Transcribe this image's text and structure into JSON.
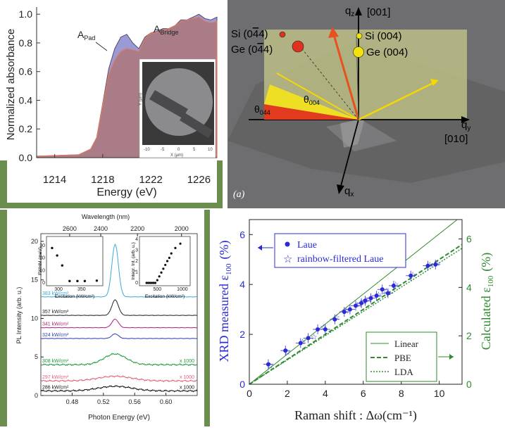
{
  "colors": {
    "green_frame": "#6b8e4e",
    "abs_fill": "#a97c88",
    "abs_pad_fill": "#8f8fcf",
    "abs_bridge_line": "#e07a5f",
    "blue_series": "#2b2bd6",
    "green_series": "#2e8b2e",
    "sem_bg": "#707072",
    "yellow_plane": "#c8c98a"
  },
  "panel_a": {
    "ylabel": "Normalized absorbance",
    "xlabel": "Energy (eV)",
    "label_pad": "A",
    "label_pad_sub": "Pad",
    "label_bridge": "A",
    "label_bridge_sub": "Bridge",
    "inset_ylabel": "Y (µm)",
    "inset_xlabel": "X (µm)",
    "inset_xticks": [
      "-10",
      "-5",
      "0",
      "5",
      "10"
    ],
    "inset_yticks": [
      "10",
      "5",
      "0",
      "-5",
      "-10"
    ]
  },
  "panel_b": {
    "qz": "q",
    "qz_sub": "z",
    "qz_dir": "[001]",
    "qy": "q",
    "qy_sub": "y",
    "qy_dir": "[010]",
    "qx": "q",
    "qx_sub": "x",
    "si_neg": "Si (0",
    "si_neg_bar": "4",
    "si_neg_mid": "",
    "si_neg_tail": "4)",
    "ge_neg": "Ge (0",
    "ge_neg_tail": "4)",
    "si_pos": "Si (004)",
    "ge_pos": "Ge (004)",
    "theta_004": "θ",
    "theta_004_sub": "004",
    "theta_044": "θ",
    "theta_044_sub": "044",
    "theta_044_bar": "0",
    "panel_label": "(a)"
  },
  "panel_c": {
    "top_label": "Wavelength (nm)",
    "top_ticks": [
      "2600",
      "2400",
      "2200",
      "2000"
    ],
    "ylabel": "PL Intensity (arb. u.)",
    "xlabel": "Photon Energy (eV)",
    "yticks": [
      "0",
      "5",
      "10",
      "15",
      "20"
    ],
    "xticks": [
      "0.48",
      "0.52",
      "0.56",
      "0.60"
    ],
    "traces": [
      {
        "label": "383 kW/cm²",
        "color": "#3fa9d9",
        "mult": ""
      },
      {
        "label": "357 kW/cm²",
        "color": "#222222",
        "mult": ""
      },
      {
        "label": "341 kW/cm²",
        "color": "#b0207a",
        "mult": ""
      },
      {
        "label": "324 kW/cm²",
        "color": "#2b3fb0",
        "mult": ""
      },
      {
        "label": "308 kW/cm²",
        "color": "#1f9a3a",
        "mult": "x 1000"
      },
      {
        "label": "297 kW/cm²",
        "color": "#e0607a",
        "mult": "x 1000"
      },
      {
        "label": "286 kW/cm²",
        "color": "#111111",
        "mult": "x 1000"
      }
    ],
    "inset1": {
      "ylabel": "FWHM (meV)",
      "xlabel": "Excitation (kW/cm²)",
      "xticks": [
        "300",
        "350"
      ],
      "yticks": [
        "0",
        "10",
        "20",
        "30"
      ]
    },
    "inset2": {
      "ylabel": "Integr. Int. (arb. u.)",
      "xlabel": "Excitation (kW/cm²)",
      "xticks": [
        "500",
        "1000"
      ],
      "yticks": [
        "0",
        "1",
        "2",
        "3",
        "4"
      ]
    }
  },
  "chart_data": [
    {
      "type": "area",
      "title": "",
      "xlabel": "Energy (eV)",
      "ylabel": "Normalized absorbance",
      "xlim": [
        1212.5,
        1227.5
      ],
      "ylim": [
        0,
        1.05
      ],
      "xticks": [
        1214,
        1218,
        1222,
        1226
      ],
      "yticks": [
        0.0,
        0.2,
        0.4,
        0.6,
        0.8,
        1.0
      ],
      "series": [
        {
          "name": "A_Pad",
          "x": [
            1212.5,
            1216,
            1217,
            1217.5,
            1218,
            1218.5,
            1219,
            1219.5,
            1220,
            1220.5,
            1221,
            1221.5,
            1222,
            1222.5,
            1223,
            1223.5,
            1224,
            1224.5,
            1225,
            1225.5,
            1226,
            1226.5,
            1227,
            1227.5
          ],
          "values": [
            0.01,
            0.02,
            0.06,
            0.14,
            0.38,
            0.62,
            0.76,
            0.84,
            0.86,
            0.8,
            0.76,
            0.84,
            0.87,
            0.88,
            0.9,
            0.9,
            0.92,
            0.96,
            0.96,
            0.98,
            1.0,
            0.97,
            0.96,
            0.98
          ]
        },
        {
          "name": "A_Bridge",
          "x": [
            1212.5,
            1216,
            1217,
            1217.5,
            1218,
            1218.5,
            1219,
            1219.5,
            1220,
            1220.5,
            1221,
            1221.5,
            1222,
            1222.5,
            1223,
            1223.5,
            1224,
            1224.5,
            1225,
            1225.5,
            1226,
            1226.5,
            1227,
            1227.5
          ],
          "values": [
            0.01,
            0.02,
            0.06,
            0.14,
            0.37,
            0.58,
            0.68,
            0.74,
            0.76,
            0.75,
            0.74,
            0.83,
            0.87,
            0.87,
            0.89,
            0.9,
            0.92,
            0.95,
            0.96,
            0.97,
            0.98,
            0.95,
            0.94,
            0.95
          ]
        }
      ]
    },
    {
      "type": "line",
      "title": "",
      "xlabel": "Photon Energy (eV)",
      "ylabel": "PL Intensity (arb. u.)",
      "top_xlabel": "Wavelength (nm)",
      "xlim": [
        0.44,
        0.64
      ],
      "ylim": [
        0,
        21
      ],
      "xticks": [
        0.48,
        0.52,
        0.56,
        0.6
      ],
      "yticks": [
        0,
        5,
        10,
        15,
        20
      ],
      "peak_energy": 0.535,
      "series": [
        {
          "name": "383 kW/cm²",
          "offset": 12.8,
          "peak": 6.8,
          "width": 0.006
        },
        {
          "name": "357 kW/cm²",
          "offset": 10.4,
          "peak": 2.0,
          "width": 0.006
        },
        {
          "name": "341 kW/cm²",
          "offset": 8.8,
          "peak": 1.1,
          "width": 0.006
        },
        {
          "name": "324 kW/cm²",
          "offset": 7.4,
          "peak": 0.6,
          "width": 0.006
        },
        {
          "name": "308 kW/cm²",
          "offset": 4.0,
          "peak": 1.4,
          "width": 0.02,
          "scale": "x 1000"
        },
        {
          "name": "297 kW/cm²",
          "offset": 1.9,
          "peak": 0.6,
          "width": 0.03,
          "scale": "x 1000"
        },
        {
          "name": "286 kW/cm²",
          "offset": 0.6,
          "peak": 0.6,
          "width": 0.03,
          "scale": "x 1000"
        }
      ]
    },
    {
      "type": "scatter",
      "title": "FWHM inset",
      "xlabel": "Excitation (kW/cm²)",
      "ylabel": "FWHM (meV)",
      "xlim": [
        280,
        390
      ],
      "ylim": [
        0,
        35
      ],
      "x": [
        286,
        297,
        308,
        324,
        341,
        357,
        383
      ],
      "y": [
        28,
        22,
        14,
        1.5,
        1.5,
        1.5,
        1.8
      ]
    },
    {
      "type": "scatter",
      "title": "Integrated intensity inset",
      "xlabel": "Excitation (kW/cm²)",
      "ylabel": "Integr. Int. (arb. u.)",
      "xlim": [
        200,
        1100
      ],
      "ylim": [
        0,
        4
      ],
      "x": [
        286,
        320,
        355,
        390,
        425,
        460,
        500,
        540,
        580,
        620,
        660,
        700,
        740,
        780,
        860,
        960
      ],
      "y": [
        0,
        0,
        0,
        0,
        0,
        0,
        0.25,
        0.6,
        0.95,
        1.3,
        1.65,
        2.0,
        2.3,
        2.7,
        3.2,
        3.6
      ]
    },
    {
      "type": "scatter",
      "title": "",
      "xlabel": "Raman shift : Δω(cm⁻¹)",
      "ylabel": "XRD measured ε",
      "ylabel_sub": "100",
      "ylabel_unit": "(%)",
      "y2label": "Calculated ε",
      "y2label_sub": "100",
      "y2label_unit": "(%)",
      "xlim": [
        0,
        11.2
      ],
      "ylim": [
        0,
        6.6
      ],
      "xticks": [
        0,
        2,
        4,
        6,
        8,
        10
      ],
      "yticks": [
        0,
        2,
        4,
        6
      ],
      "y2ticks": [
        0,
        2,
        4,
        6
      ],
      "legend": [
        "Laue",
        "rainbow-filtered Laue"
      ],
      "legend2": [
        "Linear",
        "PBE",
        "LDA"
      ],
      "series": [
        {
          "name": "Laue",
          "x": [
            1.0,
            1.9,
            2.7,
            3.1,
            3.6,
            4.0,
            4.5,
            5.0,
            5.3,
            5.6,
            5.9,
            6.1,
            6.4,
            6.7,
            7.0,
            7.3,
            7.6,
            8.5,
            9.4,
            9.8
          ],
          "values": [
            0.8,
            1.35,
            1.65,
            1.85,
            2.2,
            2.2,
            2.6,
            2.9,
            3.0,
            3.15,
            3.25,
            3.35,
            3.45,
            3.55,
            3.8,
            3.65,
            3.95,
            4.35,
            4.75,
            4.8
          ]
        },
        {
          "name": "rainbow-filtered Laue",
          "x": [
            1.1,
            2.0,
            2.8,
            3.4,
            3.9,
            4.6,
            5.1,
            5.8,
            6.3,
            6.8,
            7.2,
            7.7,
            8.6,
            9.5,
            9.9
          ],
          "values": [
            0.75,
            1.3,
            1.7,
            1.9,
            2.3,
            2.7,
            2.95,
            3.2,
            3.4,
            3.6,
            3.75,
            4.0,
            4.4,
            4.8,
            4.85
          ]
        },
        {
          "name": "Linear",
          "x": [
            0,
            11.2
          ],
          "values": [
            0,
            6.75
          ]
        },
        {
          "name": "PBE",
          "x": [
            0,
            11.2
          ],
          "values": [
            0,
            5.6
          ]
        },
        {
          "name": "LDA",
          "x": [
            0,
            11.2
          ],
          "values": [
            0,
            5.45
          ]
        }
      ]
    }
  ]
}
